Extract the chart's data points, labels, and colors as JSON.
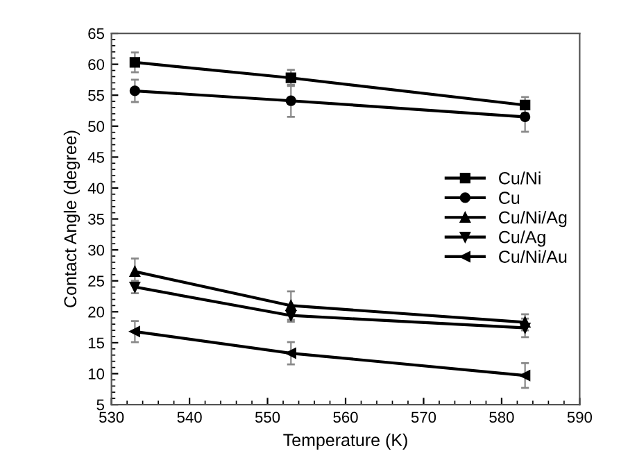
{
  "chart_data": {
    "type": "line",
    "xlabel": "Temperature (K)",
    "ylabel": "Contact Angle (degree)",
    "x": [
      533,
      553,
      583
    ],
    "series": [
      {
        "name": "Cu/Ni",
        "color": "#000000",
        "marker": "square",
        "values": [
          60.3,
          57.8,
          53.4
        ],
        "errors": [
          1.6,
          1.3,
          1.3
        ]
      },
      {
        "name": "Cu",
        "color": "#000000",
        "marker": "circle",
        "values": [
          55.7,
          54.1,
          51.5
        ],
        "errors": [
          1.8,
          2.6,
          2.4
        ]
      },
      {
        "name": "Cu/Ni/Ag",
        "color": "#000000",
        "marker": "triangle",
        "values": [
          26.5,
          21.0,
          18.3
        ],
        "errors": [
          2.1,
          2.3,
          1.3
        ]
      },
      {
        "name": "Cu/Ag",
        "color": "#000000",
        "marker": "triangle_down",
        "values": [
          24.0,
          19.4,
          17.4
        ],
        "errors": [
          1.0,
          1.0,
          1.5
        ]
      },
      {
        "name": "Cu/Ni/Au",
        "color": "#000000",
        "marker": "triangle_left",
        "values": [
          16.8,
          13.3,
          9.7
        ],
        "errors": [
          1.7,
          1.8,
          2.0
        ]
      }
    ],
    "xlim": [
      530,
      590
    ],
    "xticks": [
      530,
      540,
      550,
      560,
      570,
      580,
      590
    ],
    "ylim": [
      5,
      65
    ],
    "yticks": [
      5,
      10,
      15,
      20,
      25,
      30,
      35,
      40,
      45,
      50,
      55,
      60,
      65
    ],
    "grid": false,
    "legend": "right",
    "line_style": "solid"
  }
}
